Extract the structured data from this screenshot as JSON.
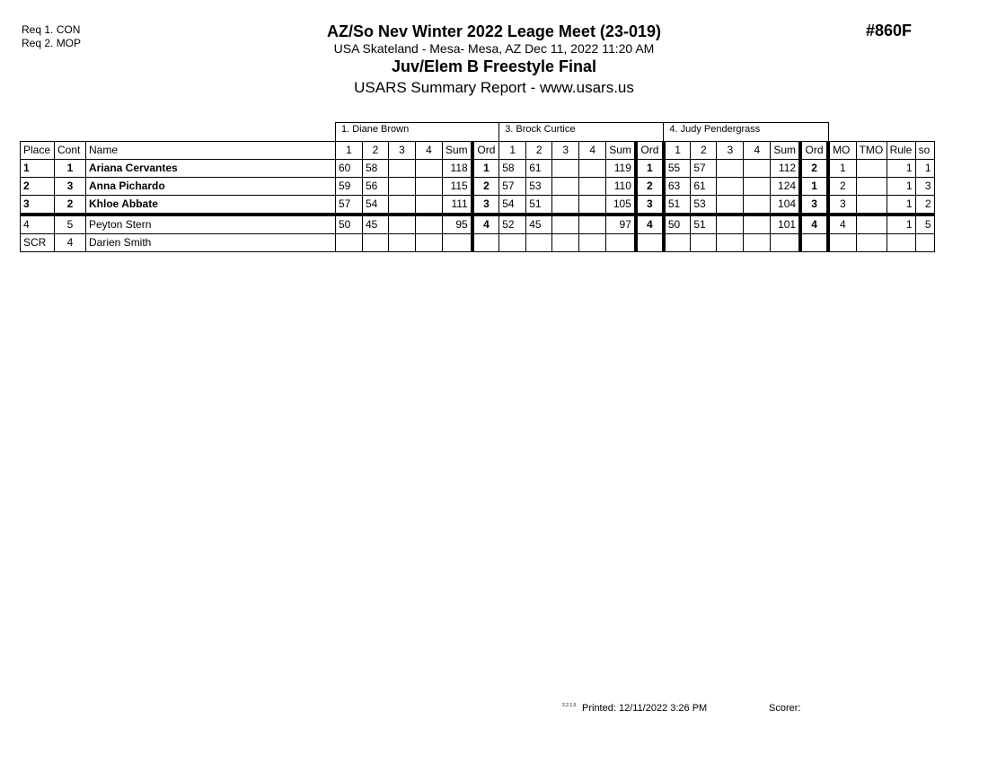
{
  "requirements": [
    "Req 1.  CON",
    "Req 2.  MOP"
  ],
  "header": {
    "title": "AZ/So Nev Winter 2022 Leage Meet (23-019)",
    "venue": "USA Skateland - Mesa- Mesa, AZ  Dec 11, 2022  11:20 AM",
    "event": "Juv/Elem B Freestyle Final",
    "report": "USARS Summary Report - www.usars.us",
    "event_number": "#860F"
  },
  "judges": [
    "1.  Diane Brown",
    "3.  Brock Curtice",
    "4.  Judy Pendergrass"
  ],
  "columns": {
    "place": "Place",
    "cont": "Cont",
    "name": "Name",
    "judge_cols": [
      "1",
      "2",
      "3",
      "4",
      "Sum",
      "Ord"
    ],
    "mo": "MO",
    "tmo": "TMO",
    "rule": "Rule",
    "so": "so"
  },
  "rows": [
    {
      "place": "1",
      "cont": "1",
      "name": "Ariana Cervantes",
      "bold": true,
      "judges": [
        [
          "60",
          "58",
          "",
          "",
          "118",
          "1"
        ],
        [
          "58",
          "61",
          "",
          "",
          "119",
          "1"
        ],
        [
          "55",
          "57",
          "",
          "",
          "112",
          "2"
        ]
      ],
      "mo": "1",
      "tmo": "",
      "rule": "1",
      "so": "1"
    },
    {
      "place": "2",
      "cont": "3",
      "name": "Anna Pichardo",
      "bold": true,
      "judges": [
        [
          "59",
          "56",
          "",
          "",
          "115",
          "2"
        ],
        [
          "57",
          "53",
          "",
          "",
          "110",
          "2"
        ],
        [
          "63",
          "61",
          "",
          "",
          "124",
          "1"
        ]
      ],
      "mo": "2",
      "tmo": "",
      "rule": "1",
      "so": "3"
    },
    {
      "place": "3",
      "cont": "2",
      "name": "Khloe Abbate",
      "bold": true,
      "judges": [
        [
          "57",
          "54",
          "",
          "",
          "111",
          "3"
        ],
        [
          "54",
          "51",
          "",
          "",
          "105",
          "3"
        ],
        [
          "51",
          "53",
          "",
          "",
          "104",
          "3"
        ]
      ],
      "mo": "3",
      "tmo": "",
      "rule": "1",
      "so": "2"
    },
    {
      "place": "4",
      "cont": "5",
      "name": "Peyton Stern",
      "bold": false,
      "judges": [
        [
          "50",
          "45",
          "",
          "",
          "95",
          "4"
        ],
        [
          "52",
          "45",
          "",
          "",
          "97",
          "4"
        ],
        [
          "50",
          "51",
          "",
          "",
          "101",
          "4"
        ]
      ],
      "mo": "4",
      "tmo": "",
      "rule": "1",
      "so": "5"
    },
    {
      "place": "SCR",
      "cont": "4",
      "name": "Darien Smith",
      "bold": false,
      "judges": [
        [
          "",
          "",
          "",
          "",
          "",
          ""
        ],
        [
          "",
          "",
          "",
          "",
          "",
          ""
        ],
        [
          "",
          "",
          "",
          "",
          "",
          ""
        ]
      ],
      "mo": "",
      "tmo": "",
      "rule": "",
      "so": ""
    }
  ],
  "footer": {
    "version": "2.2.1.0",
    "printed": "Printed:  12/11/2022  3:26 PM",
    "scorer": "Scorer:"
  }
}
